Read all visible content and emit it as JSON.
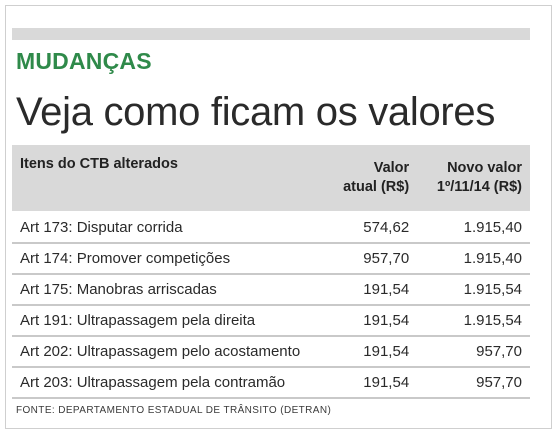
{
  "kicker": "MUDANÇAS",
  "headline": "Veja como ficam os valores",
  "table": {
    "headers": {
      "item": "Itens do CTB alterados",
      "current_line1": "Valor",
      "current_line2": "atual (R$)",
      "new_line1": "Novo valor",
      "new_line2": "1º/11/14 (R$)"
    },
    "rows": [
      {
        "article": "Art 173:",
        "description": "Disputar corrida",
        "current": "574,62",
        "new": "1.915,40"
      },
      {
        "article": "Art 174:",
        "description": "Promover competições",
        "current": "957,70",
        "new": "1.915,40"
      },
      {
        "article": "Art 175:",
        "description": "Manobras arriscadas",
        "current": "191,54",
        "new": "1.915,54"
      },
      {
        "article": "Art 191:",
        "description": "Ultrapassagem pela direita",
        "current": "191,54",
        "new": "1.915,54"
      },
      {
        "article": "Art 202:",
        "description": "Ultrapassagem pelo acostamento",
        "current": "191,54",
        "new": "957,70"
      },
      {
        "article": "Art 203:",
        "description": "Ultrapassagem pela contramão",
        "current": "191,54",
        "new": "957,70"
      }
    ]
  },
  "source": "FONTE: DEPARTAMENTO ESTADUAL DE TRÂNSITO (DETRAN)",
  "colors": {
    "kicker_green": "#2f8a4a",
    "header_gray": "#d9d9d9"
  }
}
